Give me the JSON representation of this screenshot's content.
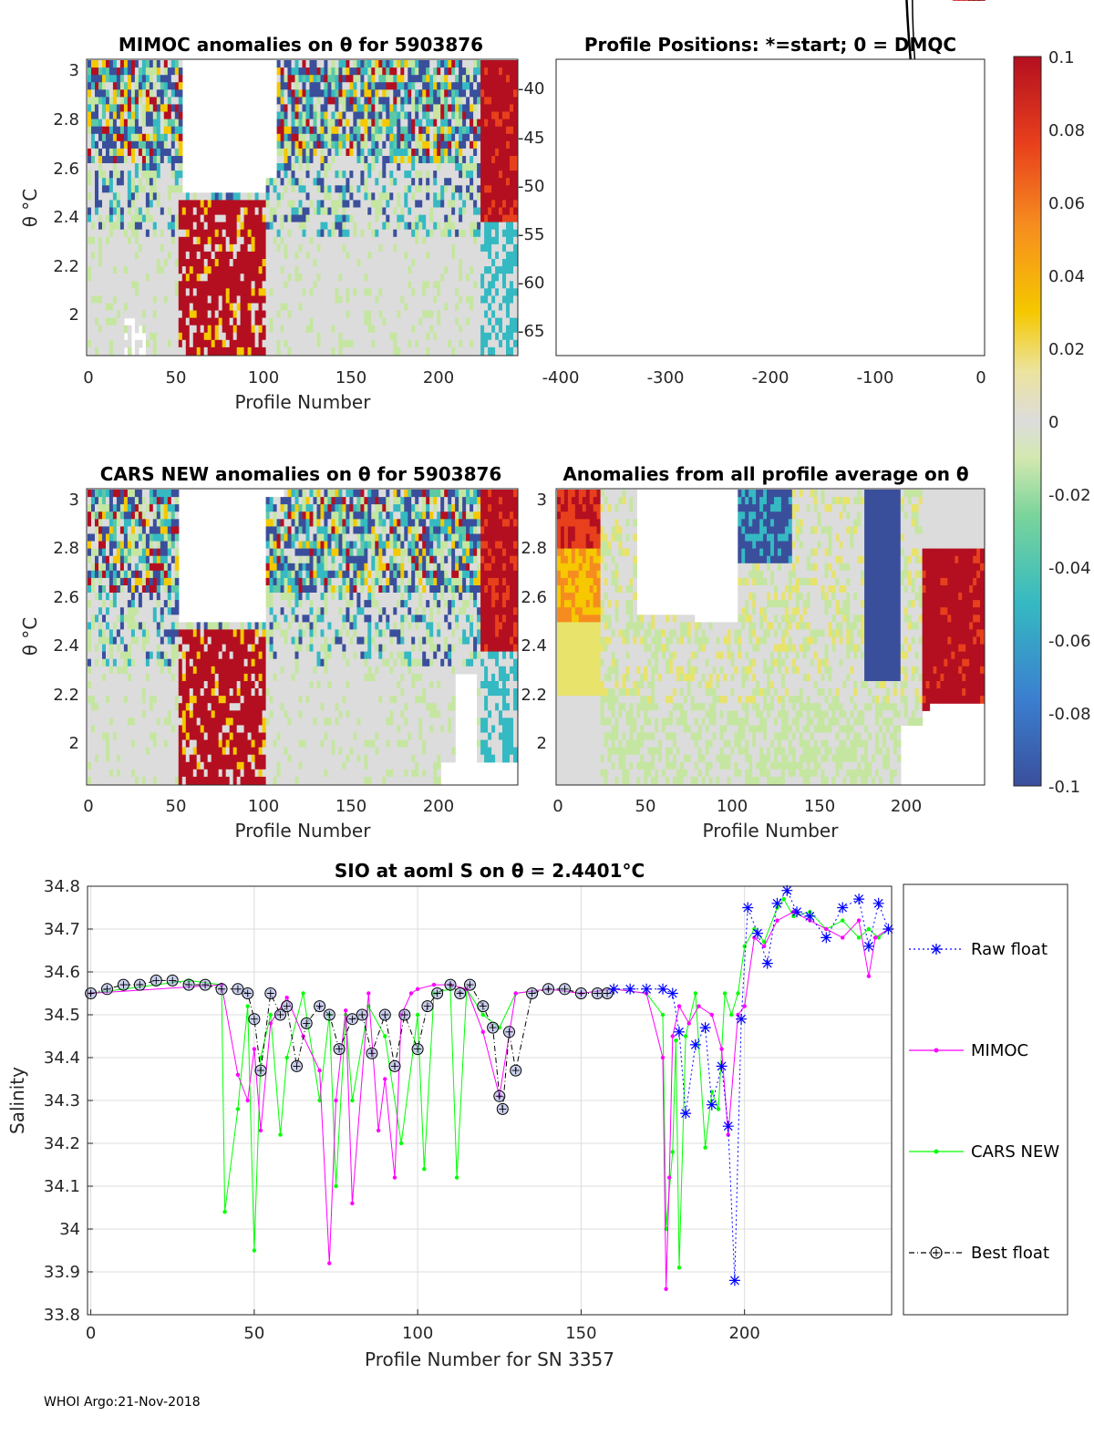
{
  "colors": {
    "raw": "#0000ff",
    "mimoc": "#ff00ff",
    "cars": "#00ff00",
    "best": "#000000",
    "cmap": [
      "#3a4f9c",
      "#3b8fd4",
      "#35b9c2",
      "#5cc9a5",
      "#c5e6a0",
      "#dcdcdc",
      "#e8e36a",
      "#f5c800",
      "#f68c1f",
      "#e8401c",
      "#b40f20"
    ]
  },
  "panel_mimoc": {
    "title": "MIMOC anomalies on θ  for 5903876",
    "ylabel": "θ °C",
    "xlabel": "Profile Number",
    "xticks": [
      "0",
      "50",
      "100",
      "150",
      "200"
    ],
    "yticks": [
      "2",
      "2.2",
      "2.4",
      "2.6",
      "2.8",
      "3"
    ]
  },
  "panel_positions": {
    "title": "Profile Positions: *=start; 0 = DMQC",
    "xticks": [
      "-400",
      "-300",
      "-200",
      "-100",
      "0"
    ],
    "yticks": [
      "-40",
      "-45",
      "-50",
      "-55",
      "-60",
      "-65"
    ]
  },
  "panel_cars": {
    "title": "CARS NEW anomalies on θ for 5903876",
    "ylabel": "θ °C",
    "xlabel": "Profile Number",
    "xticks": [
      "0",
      "50",
      "100",
      "150",
      "200"
    ],
    "yticks": [
      "2",
      "2.2",
      "2.4",
      "2.6",
      "2.8",
      "3"
    ]
  },
  "panel_avg": {
    "title": "Anomalies from all profile average on θ",
    "xlabel": "Profile Number",
    "xticks": [
      "0",
      "50",
      "100",
      "150",
      "200"
    ],
    "yticks": [
      "2",
      "2.2",
      "2.4",
      "2.6",
      "2.8",
      "3"
    ]
  },
  "colorbar": {
    "ticks": [
      "0.1",
      "0.08",
      "0.06",
      "0.04",
      "0.02",
      "0",
      "-0.02",
      "-0.04",
      "-0.06",
      "-0.08",
      "-0.1"
    ]
  },
  "footer": "WHOI Argo:21-Nov-2018",
  "chart_data": {
    "type": "line",
    "title": "SIO at aoml S on θ = 2.4401°C",
    "xlabel": "Profile Number for SN 3357",
    "ylabel": "Salinity",
    "xlim": [
      -1,
      245
    ],
    "ylim": [
      33.8,
      34.8
    ],
    "xticks": [
      "0",
      "50",
      "100",
      "150",
      "200"
    ],
    "yticks": [
      "33.8",
      "33.9",
      "34",
      "34.1",
      "34.2",
      "34.3",
      "34.4",
      "34.5",
      "34.6",
      "34.7",
      "34.8"
    ],
    "legend": [
      "Raw float",
      "MIMOC",
      "CARS NEW",
      "Best float"
    ],
    "series": [
      {
        "name": "Raw float",
        "x": [
          160,
          165,
          170,
          175,
          178,
          180,
          182,
          185,
          188,
          190,
          193,
          195,
          197,
          199,
          201,
          204,
          207,
          210,
          213,
          216,
          220,
          225,
          230,
          235,
          238,
          241,
          244
        ],
        "y": [
          34.56,
          34.56,
          34.56,
          34.56,
          34.55,
          34.46,
          34.27,
          34.43,
          34.47,
          34.29,
          34.38,
          34.24,
          33.88,
          34.49,
          34.75,
          34.69,
          34.62,
          34.76,
          34.79,
          34.74,
          34.73,
          34.68,
          34.75,
          34.77,
          34.66,
          34.76,
          34.7
        ]
      },
      {
        "name": "MIMOC",
        "x": [
          0,
          40,
          45,
          48,
          50,
          52,
          55,
          60,
          65,
          70,
          73,
          75,
          78,
          80,
          85,
          88,
          90,
          93,
          95,
          98,
          100,
          105,
          110,
          115,
          120,
          125,
          130,
          140,
          150,
          160,
          170,
          175,
          176,
          177,
          178,
          180,
          183,
          186,
          190,
          193,
          195,
          198,
          200,
          203,
          206,
          210,
          215,
          220,
          225,
          230,
          235,
          238,
          240,
          244
        ],
        "y": [
          34.55,
          34.57,
          34.36,
          34.3,
          34.42,
          34.23,
          34.48,
          34.54,
          34.45,
          34.37,
          33.92,
          34.3,
          34.51,
          34.06,
          34.55,
          34.23,
          34.35,
          34.12,
          34.5,
          34.55,
          34.56,
          34.57,
          34.57,
          34.56,
          34.46,
          34.31,
          34.55,
          34.56,
          34.55,
          34.56,
          34.55,
          34.4,
          33.86,
          34.12,
          34.45,
          34.52,
          34.48,
          34.52,
          34.5,
          34.42,
          34.22,
          34.5,
          34.52,
          34.68,
          34.66,
          34.72,
          34.74,
          34.72,
          34.7,
          34.68,
          34.72,
          34.59,
          34.68,
          34.7
        ]
      },
      {
        "name": "CARS NEW",
        "x": [
          0,
          30,
          40,
          41,
          45,
          48,
          50,
          52,
          55,
          58,
          60,
          65,
          70,
          73,
          75,
          78,
          80,
          85,
          90,
          95,
          100,
          102,
          105,
          110,
          112,
          115,
          120,
          125,
          130,
          140,
          150,
          160,
          170,
          175,
          176,
          178,
          179,
          180,
          182,
          185,
          188,
          190,
          192,
          194,
          196,
          198,
          200,
          203,
          206,
          210,
          212,
          215,
          220,
          225,
          230,
          235,
          238,
          241,
          244
        ],
        "y": [
          34.55,
          34.58,
          34.57,
          34.04,
          34.28,
          34.52,
          33.95,
          34.4,
          34.5,
          34.22,
          34.4,
          34.55,
          34.3,
          34.5,
          34.1,
          34.5,
          34.3,
          34.52,
          34.45,
          34.2,
          34.5,
          34.14,
          34.55,
          34.56,
          34.12,
          34.56,
          34.5,
          34.47,
          34.55,
          34.56,
          34.55,
          34.56,
          34.55,
          34.5,
          34.0,
          34.18,
          34.44,
          33.91,
          34.45,
          34.55,
          34.19,
          34.32,
          34.28,
          34.55,
          34.5,
          34.55,
          34.66,
          34.7,
          34.67,
          34.75,
          34.77,
          34.73,
          34.74,
          34.7,
          34.72,
          34.68,
          34.7,
          34.68,
          34.7
        ]
      },
      {
        "name": "Best float",
        "x": [
          0,
          5,
          10,
          15,
          20,
          25,
          30,
          35,
          40,
          45,
          48,
          50,
          52,
          55,
          58,
          60,
          63,
          66,
          70,
          73,
          76,
          80,
          83,
          86,
          90,
          93,
          96,
          100,
          103,
          106,
          110,
          113,
          116,
          120,
          123,
          125,
          126,
          128,
          130,
          135,
          140,
          145,
          150,
          155,
          158
        ],
        "y": [
          34.55,
          34.56,
          34.57,
          34.57,
          34.58,
          34.58,
          34.57,
          34.57,
          34.56,
          34.56,
          34.55,
          34.49,
          34.37,
          34.55,
          34.5,
          34.52,
          34.38,
          34.48,
          34.52,
          34.5,
          34.42,
          34.49,
          34.5,
          34.41,
          34.5,
          34.38,
          34.5,
          34.42,
          34.52,
          34.55,
          34.57,
          34.55,
          34.57,
          34.52,
          34.47,
          34.31,
          34.28,
          34.46,
          34.37,
          34.55,
          34.56,
          34.56,
          34.55,
          34.55,
          34.55
        ]
      }
    ]
  }
}
